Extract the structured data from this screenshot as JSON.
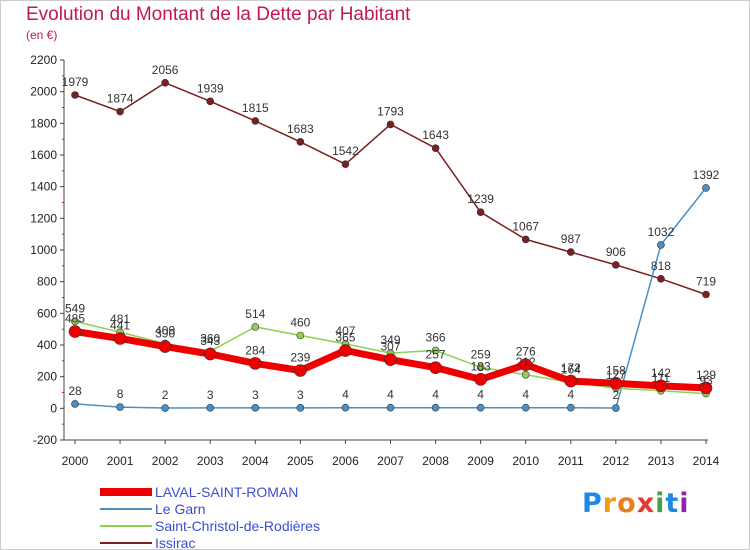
{
  "title": "Evolution du Montant de la Dette par Habitant",
  "unit_label": "(en €)",
  "logo": {
    "text": "Proxiti",
    "colors": [
      "#1e88e5",
      "#f39c12",
      "#e67e22",
      "#e53935",
      "#43a047",
      "#1e88e5",
      "#8e24aa"
    ]
  },
  "chart_data": {
    "type": "line",
    "x": [
      2000,
      2001,
      2002,
      2003,
      2004,
      2005,
      2006,
      2007,
      2008,
      2009,
      2010,
      2011,
      2012,
      2013,
      2014
    ],
    "ylim": [
      -200,
      2200
    ],
    "yticks": [
      -200,
      0,
      200,
      400,
      600,
      800,
      1000,
      1200,
      1400,
      1600,
      1800,
      2000,
      2200
    ],
    "grid": false,
    "legend_position": "bottom-left",
    "series": [
      {
        "name": "Issirac",
        "color": "#7b1f1f",
        "width": 1.5,
        "marker": 3.5,
        "values": [
          1979,
          1874,
          2056,
          1939,
          1815,
          1683,
          1542,
          1793,
          1643,
          1239,
          1067,
          987,
          906,
          818,
          719
        ]
      },
      {
        "name": "Le Garn",
        "color": "#4a90c8",
        "width": 1.5,
        "marker": 3.5,
        "values": [
          28,
          8,
          2,
          3,
          3,
          3,
          4,
          4,
          4,
          4,
          4,
          4,
          2,
          1032,
          1392
        ]
      },
      {
        "name": "Saint-Christol-de-Rodières",
        "color": "#8fd14f",
        "width": 1.5,
        "marker": 3.5,
        "values": [
          549,
          481,
          409,
          360,
          514,
          460,
          407,
          349,
          366,
          259,
          212,
          164,
          127,
          111,
          93
        ]
      },
      {
        "name": "LAVAL-SAINT-ROMAN",
        "color": "#ee0000",
        "width": 7,
        "marker": 6,
        "values": [
          485,
          441,
          390,
          343,
          284,
          239,
          365,
          307,
          257,
          183,
          276,
          172,
          158,
          142,
          129
        ]
      }
    ],
    "legend_order": [
      "LAVAL-SAINT-ROMAN",
      "Le Garn",
      "Saint-Christol-de-Rodières",
      "Issirac"
    ]
  }
}
